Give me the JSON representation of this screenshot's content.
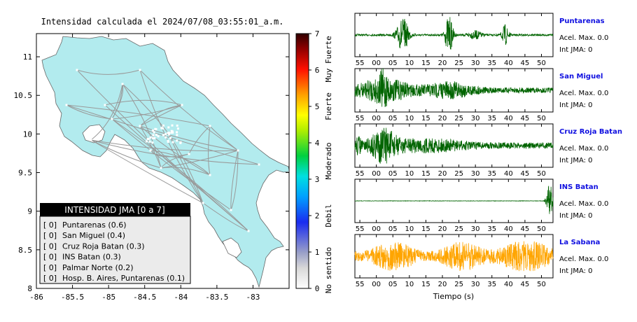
{
  "title": "Intensidad calculada el 2024/07/08_03:55:01_a.m.",
  "map": {
    "x_ticks": [
      "-86",
      "-85.5",
      "-85",
      "-84.5",
      "-84",
      "-83.5",
      "-83"
    ],
    "y_ticks": [
      "11",
      "10.5",
      "10",
      "9.5",
      "9",
      "8.5",
      "8"
    ],
    "xlim": [
      -86,
      -82.5
    ],
    "ylim": [
      8,
      11.3
    ],
    "land_color": "#b2ebee",
    "road_color": "#999999"
  },
  "colorbar": {
    "ticks": [
      "0",
      "1",
      "2",
      "3",
      "4",
      "5",
      "6",
      "7"
    ],
    "labels": [
      "No sentido",
      "Debil",
      "Moderado",
      "Fuerte",
      "Muy Fuerte"
    ]
  },
  "legend": {
    "title": "INTENSIDAD JMA [0 a 7]",
    "items": [
      {
        "level": "[ 0]",
        "name": "Puntarenas (0.6)"
      },
      {
        "level": "[ 0]",
        "name": "San Miguel (0.4)"
      },
      {
        "level": "[ 0]",
        "name": "Cruz Roja Batan (0.3)"
      },
      {
        "level": "[ 0]",
        "name": "INS Batan (0.3)"
      },
      {
        "level": "[ 0]",
        "name": "Palmar Norte (0.2)"
      },
      {
        "level": "[ 0]",
        "name": "Hosp. B. Aires, Puntarenas (0.1)"
      }
    ]
  },
  "waveforms": {
    "x_ticks": [
      "55",
      "00",
      "05",
      "10",
      "15",
      "20",
      "25",
      "30",
      "35",
      "40",
      "45",
      "50"
    ],
    "xlabel": "Tiempo (s)",
    "accel_label": "Acel. Max. 0.0",
    "int_label": "Int JMA: 0",
    "stations": [
      {
        "name": "Puntarenas",
        "color": "#006400"
      },
      {
        "name": "San Miguel",
        "color": "#006400"
      },
      {
        "name": "Cruz Roja Batan",
        "color": "#006400"
      },
      {
        "name": "INS Batan",
        "color": "#006400"
      },
      {
        "name": "La Sabana",
        "color": "#ffa500"
      }
    ]
  },
  "chart_data": {
    "type": "heatmap",
    "title": "Intensidad calculada el 2024/07/08_03:55:01_a.m.",
    "colorbar_range": [
      0,
      7
    ],
    "stations": [
      {
        "name": "Puntarenas",
        "intensity": 0.6
      },
      {
        "name": "San Miguel",
        "intensity": 0.4
      },
      {
        "name": "Cruz Roja Batan",
        "intensity": 0.3
      },
      {
        "name": "INS Batan",
        "intensity": 0.3
      },
      {
        "name": "Palmar Norte",
        "intensity": 0.2
      },
      {
        "name": "Hosp. B. Aires, Puntarenas",
        "intensity": 0.1
      }
    ]
  }
}
